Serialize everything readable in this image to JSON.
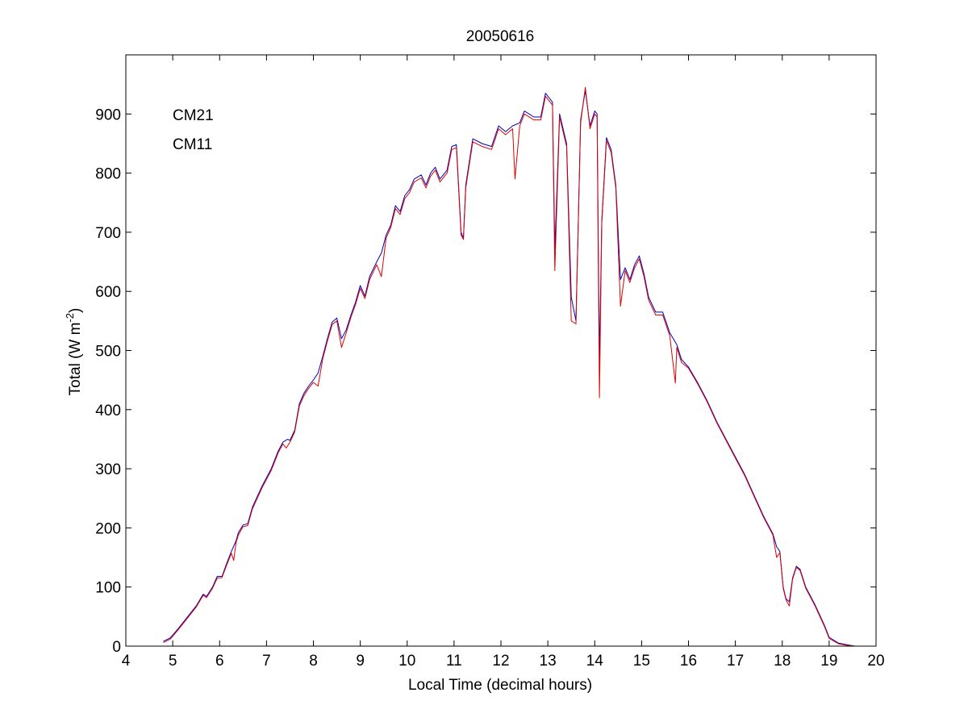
{
  "chart_data": {
    "type": "line",
    "title": "20050616",
    "xlabel": "Local Time (decimal hours)",
    "ylabel_main": "Total (W m",
    "ylabel_sup": "-2",
    "ylabel_close": ")",
    "xlim": [
      4,
      20
    ],
    "ylim": [
      0,
      1000
    ],
    "xticks": [
      "4",
      "5",
      "6",
      "7",
      "8",
      "9",
      "10",
      "11",
      "12",
      "13",
      "14",
      "15",
      "16",
      "17",
      "18",
      "19",
      "20"
    ],
    "yticks": [
      "0",
      "100",
      "200",
      "300",
      "400",
      "500",
      "600",
      "700",
      "800",
      "900"
    ],
    "grid": false,
    "legend_position": "top-left",
    "series": [
      {
        "name": "CM21",
        "color": "#0000bb",
        "points": [
          [
            4.8,
            8
          ],
          [
            4.95,
            14
          ],
          [
            5.1,
            28
          ],
          [
            5.3,
            48
          ],
          [
            5.5,
            68
          ],
          [
            5.65,
            88
          ],
          [
            5.72,
            84
          ],
          [
            5.85,
            100
          ],
          [
            5.95,
            118
          ],
          [
            6.05,
            118
          ],
          [
            6.15,
            140
          ],
          [
            6.25,
            160
          ],
          [
            6.35,
            178
          ],
          [
            6.4,
            192
          ],
          [
            6.5,
            205
          ],
          [
            6.6,
            207
          ],
          [
            6.7,
            235
          ],
          [
            6.9,
            270
          ],
          [
            7.1,
            300
          ],
          [
            7.25,
            330
          ],
          [
            7.35,
            345
          ],
          [
            7.45,
            350
          ],
          [
            7.5,
            348
          ],
          [
            7.6,
            365
          ],
          [
            7.7,
            410
          ],
          [
            7.8,
            428
          ],
          [
            7.9,
            440
          ],
          [
            8.0,
            450
          ],
          [
            8.1,
            462
          ],
          [
            8.2,
            490
          ],
          [
            8.3,
            520
          ],
          [
            8.4,
            548
          ],
          [
            8.5,
            555
          ],
          [
            8.6,
            520
          ],
          [
            8.7,
            535
          ],
          [
            8.8,
            560
          ],
          [
            8.9,
            582
          ],
          [
            9.0,
            610
          ],
          [
            9.1,
            592
          ],
          [
            9.2,
            625
          ],
          [
            9.35,
            650
          ],
          [
            9.45,
            665
          ],
          [
            9.55,
            695
          ],
          [
            9.65,
            712
          ],
          [
            9.75,
            745
          ],
          [
            9.85,
            735
          ],
          [
            9.95,
            762
          ],
          [
            10.05,
            772
          ],
          [
            10.15,
            790
          ],
          [
            10.3,
            797
          ],
          [
            10.4,
            780
          ],
          [
            10.5,
            800
          ],
          [
            10.6,
            810
          ],
          [
            10.7,
            790
          ],
          [
            10.85,
            805
          ],
          [
            10.95,
            845
          ],
          [
            11.05,
            848
          ],
          [
            11.15,
            700
          ],
          [
            11.2,
            690
          ],
          [
            11.25,
            780
          ],
          [
            11.4,
            858
          ],
          [
            11.6,
            850
          ],
          [
            11.8,
            845
          ],
          [
            11.95,
            880
          ],
          [
            12.1,
            870
          ],
          [
            12.25,
            880
          ],
          [
            12.4,
            885
          ],
          [
            12.5,
            905
          ],
          [
            12.7,
            895
          ],
          [
            12.85,
            895
          ],
          [
            12.95,
            935
          ],
          [
            13.1,
            920
          ],
          [
            13.15,
            670
          ],
          [
            13.25,
            900
          ],
          [
            13.4,
            850
          ],
          [
            13.5,
            590
          ],
          [
            13.6,
            550
          ],
          [
            13.7,
            890
          ],
          [
            13.8,
            940
          ],
          [
            13.9,
            880
          ],
          [
            14.0,
            905
          ],
          [
            14.05,
            900
          ],
          [
            14.1,
            480
          ],
          [
            14.15,
            720
          ],
          [
            14.25,
            860
          ],
          [
            14.35,
            840
          ],
          [
            14.45,
            780
          ],
          [
            14.55,
            620
          ],
          [
            14.65,
            640
          ],
          [
            14.75,
            620
          ],
          [
            14.85,
            645
          ],
          [
            14.95,
            660
          ],
          [
            15.05,
            630
          ],
          [
            15.15,
            590
          ],
          [
            15.3,
            565
          ],
          [
            15.45,
            565
          ],
          [
            15.6,
            530
          ],
          [
            15.75,
            510
          ],
          [
            15.85,
            485
          ],
          [
            16.0,
            472
          ],
          [
            16.2,
            445
          ],
          [
            16.4,
            415
          ],
          [
            16.6,
            380
          ],
          [
            16.8,
            350
          ],
          [
            17.0,
            320
          ],
          [
            17.2,
            290
          ],
          [
            17.4,
            255
          ],
          [
            17.6,
            220
          ],
          [
            17.8,
            190
          ],
          [
            17.88,
            168
          ],
          [
            17.95,
            160
          ],
          [
            18.02,
            100
          ],
          [
            18.08,
            80
          ],
          [
            18.15,
            75
          ],
          [
            18.22,
            115
          ],
          [
            18.3,
            135
          ],
          [
            18.38,
            130
          ],
          [
            18.5,
            100
          ],
          [
            18.7,
            70
          ],
          [
            18.9,
            35
          ],
          [
            19.0,
            15
          ],
          [
            19.2,
            5
          ],
          [
            19.4,
            2
          ],
          [
            19.55,
            0
          ]
        ]
      },
      {
        "name": "CM11",
        "color": "#dd0000",
        "points": [
          [
            4.8,
            6
          ],
          [
            4.95,
            12
          ],
          [
            5.1,
            26
          ],
          [
            5.3,
            46
          ],
          [
            5.5,
            66
          ],
          [
            5.65,
            86
          ],
          [
            5.72,
            82
          ],
          [
            5.85,
            98
          ],
          [
            5.95,
            115
          ],
          [
            6.05,
            116
          ],
          [
            6.15,
            137
          ],
          [
            6.25,
            157
          ],
          [
            6.3,
            145
          ],
          [
            6.35,
            175
          ],
          [
            6.4,
            188
          ],
          [
            6.5,
            202
          ],
          [
            6.6,
            204
          ],
          [
            6.7,
            232
          ],
          [
            6.9,
            267
          ],
          [
            7.1,
            297
          ],
          [
            7.25,
            327
          ],
          [
            7.35,
            342
          ],
          [
            7.42,
            335
          ],
          [
            7.5,
            345
          ],
          [
            7.6,
            362
          ],
          [
            7.7,
            406
          ],
          [
            7.8,
            424
          ],
          [
            7.9,
            436
          ],
          [
            8.0,
            446
          ],
          [
            8.1,
            440
          ],
          [
            8.2,
            486
          ],
          [
            8.3,
            516
          ],
          [
            8.4,
            544
          ],
          [
            8.5,
            550
          ],
          [
            8.6,
            505
          ],
          [
            8.7,
            530
          ],
          [
            8.8,
            556
          ],
          [
            8.9,
            578
          ],
          [
            9.0,
            605
          ],
          [
            9.1,
            588
          ],
          [
            9.2,
            620
          ],
          [
            9.35,
            645
          ],
          [
            9.45,
            625
          ],
          [
            9.55,
            690
          ],
          [
            9.65,
            708
          ],
          [
            9.75,
            740
          ],
          [
            9.85,
            730
          ],
          [
            9.95,
            757
          ],
          [
            10.05,
            767
          ],
          [
            10.15,
            785
          ],
          [
            10.3,
            792
          ],
          [
            10.4,
            775
          ],
          [
            10.5,
            795
          ],
          [
            10.6,
            805
          ],
          [
            10.7,
            785
          ],
          [
            10.85,
            800
          ],
          [
            10.95,
            840
          ],
          [
            11.05,
            843
          ],
          [
            11.15,
            695
          ],
          [
            11.2,
            688
          ],
          [
            11.25,
            775
          ],
          [
            11.4,
            853
          ],
          [
            11.6,
            845
          ],
          [
            11.8,
            840
          ],
          [
            11.95,
            875
          ],
          [
            12.1,
            865
          ],
          [
            12.25,
            875
          ],
          [
            12.3,
            790
          ],
          [
            12.4,
            880
          ],
          [
            12.5,
            900
          ],
          [
            12.7,
            890
          ],
          [
            12.85,
            890
          ],
          [
            12.95,
            930
          ],
          [
            13.1,
            915
          ],
          [
            13.15,
            635
          ],
          [
            13.25,
            895
          ],
          [
            13.4,
            845
          ],
          [
            13.5,
            550
          ],
          [
            13.6,
            545
          ],
          [
            13.7,
            885
          ],
          [
            13.8,
            945
          ],
          [
            13.9,
            875
          ],
          [
            14.0,
            900
          ],
          [
            14.05,
            895
          ],
          [
            14.1,
            420
          ],
          [
            14.15,
            715
          ],
          [
            14.25,
            855
          ],
          [
            14.35,
            835
          ],
          [
            14.45,
            775
          ],
          [
            14.55,
            575
          ],
          [
            14.65,
            635
          ],
          [
            14.75,
            615
          ],
          [
            14.85,
            640
          ],
          [
            14.95,
            655
          ],
          [
            15.05,
            625
          ],
          [
            15.15,
            585
          ],
          [
            15.3,
            560
          ],
          [
            15.45,
            560
          ],
          [
            15.6,
            525
          ],
          [
            15.72,
            445
          ],
          [
            15.75,
            505
          ],
          [
            15.85,
            480
          ],
          [
            16.0,
            470
          ],
          [
            16.2,
            443
          ],
          [
            16.4,
            413
          ],
          [
            16.6,
            378
          ],
          [
            16.8,
            348
          ],
          [
            17.0,
            318
          ],
          [
            17.2,
            288
          ],
          [
            17.4,
            253
          ],
          [
            17.6,
            218
          ],
          [
            17.8,
            188
          ],
          [
            17.88,
            150
          ],
          [
            17.95,
            158
          ],
          [
            18.02,
            98
          ],
          [
            18.08,
            78
          ],
          [
            18.15,
            68
          ],
          [
            18.22,
            113
          ],
          [
            18.3,
            133
          ],
          [
            18.38,
            128
          ],
          [
            18.5,
            98
          ],
          [
            18.7,
            68
          ],
          [
            18.9,
            33
          ],
          [
            19.0,
            13
          ],
          [
            19.2,
            4
          ],
          [
            19.4,
            1
          ],
          [
            19.55,
            0
          ]
        ]
      }
    ]
  }
}
